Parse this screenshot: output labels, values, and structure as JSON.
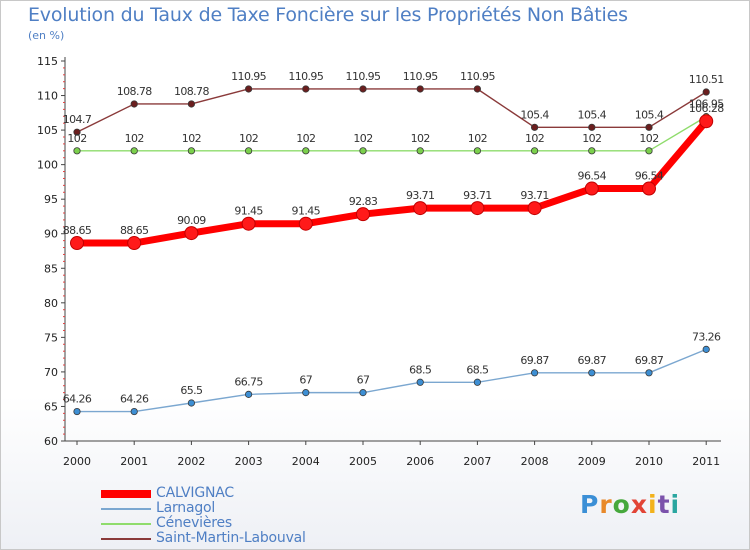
{
  "title": "Evolution du Taux de Taxe Foncière sur les Propriétés Non Bâties",
  "unit_label": "(en %)",
  "logo": {
    "text": "Proxiti",
    "colors": [
      "#3b8fd6",
      "#e8892a",
      "#46a83c",
      "#e24436",
      "#f2b21c",
      "#7b52ab",
      "#2aa6a0"
    ]
  },
  "chart_data": {
    "type": "line",
    "categories": [
      "2000",
      "2001",
      "2002",
      "2003",
      "2004",
      "2005",
      "2006",
      "2007",
      "2008",
      "2009",
      "2010",
      "2011"
    ],
    "ylim": [
      60,
      115
    ],
    "yticks": [
      60,
      65,
      70,
      75,
      80,
      85,
      90,
      95,
      100,
      105,
      110,
      115
    ],
    "grid": false,
    "legend_position": "bottom-left",
    "series": [
      {
        "name": "CALVIGNAC",
        "color": "#ff0000",
        "bold": true,
        "values": [
          88.65,
          88.65,
          90.09,
          91.45,
          91.45,
          92.83,
          93.71,
          93.71,
          93.71,
          96.54,
          96.54,
          106.28
        ],
        "labels": [
          "88.65",
          "88.65",
          "90.09",
          "91.45",
          "91.45",
          "92.83",
          "93.71",
          "93.71",
          "93.71",
          "96.54",
          "96.54",
          "106.28"
        ]
      },
      {
        "name": "Larnagol",
        "color": "#7ba7d0",
        "marker": "#3d8fd4",
        "values": [
          64.26,
          64.26,
          65.5,
          66.75,
          67,
          67,
          68.5,
          68.5,
          69.87,
          69.87,
          69.87,
          73.26
        ],
        "labels": [
          "64.26",
          "64.26",
          "65.5",
          "66.75",
          "67",
          "67",
          "68.5",
          "68.5",
          "69.87",
          "69.87",
          "69.87",
          "73.26"
        ]
      },
      {
        "name": "Cénevières",
        "color": "#8fdc6c",
        "marker": "#7bd04c",
        "values": [
          102,
          102,
          102,
          102,
          102,
          102,
          102,
          102,
          102,
          102,
          102,
          106.95
        ],
        "labels": [
          "102",
          "102",
          "102",
          "102",
          "102",
          "102",
          "102",
          "102",
          "102",
          "102",
          "102",
          "106.95"
        ]
      },
      {
        "name": "Saint-Martin-Labouval",
        "color": "#8a3a3a",
        "marker": "#6b1e1e",
        "values": [
          104.7,
          108.78,
          108.78,
          110.95,
          110.95,
          110.95,
          110.95,
          110.95,
          105.4,
          105.4,
          105.4,
          110.51
        ],
        "labels": [
          "104.7",
          "108.78",
          "108.78",
          "110.95",
          "110.95",
          "110.95",
          "110.95",
          "110.95",
          "105.4",
          "105.4",
          "105.4",
          "110.51"
        ]
      }
    ]
  }
}
